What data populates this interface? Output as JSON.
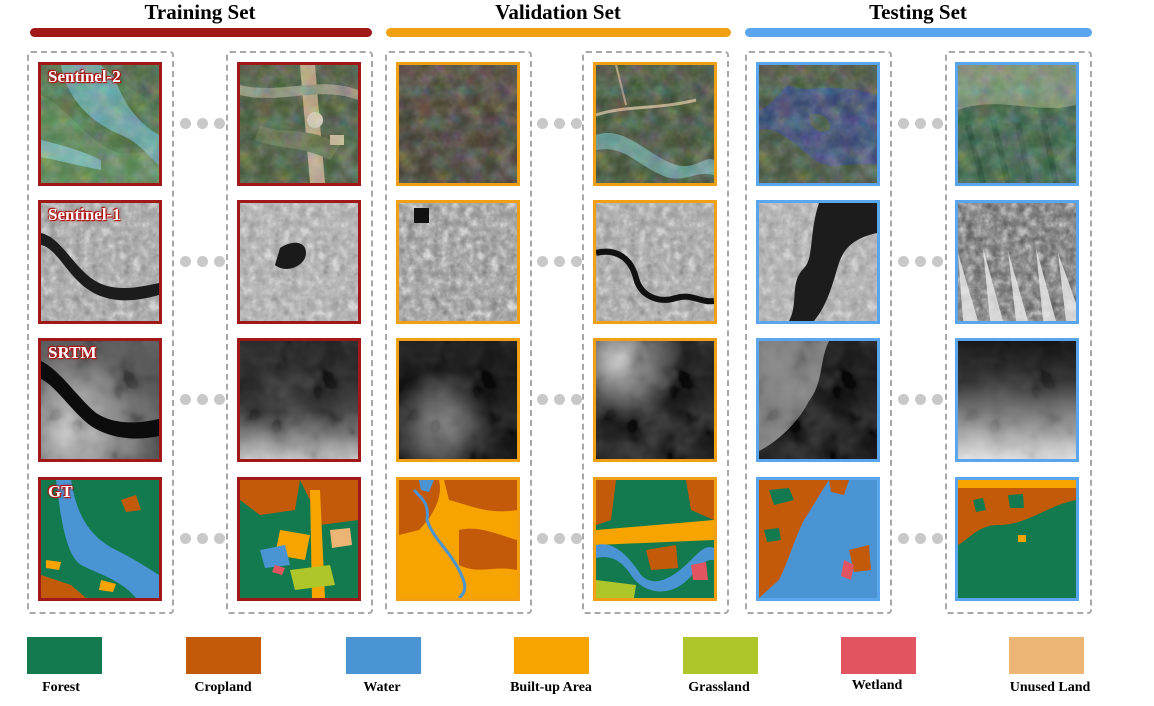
{
  "sets": {
    "training": {
      "title": "Training Set",
      "color": "#a01818"
    },
    "validation": {
      "title": "Validation Set",
      "color": "#f2a013"
    },
    "testing": {
      "title": "Testing Set",
      "color": "#5aa6ee"
    }
  },
  "row_labels": {
    "sentinel2": "Sentinel-2",
    "sentinel1": "Sentinel-1",
    "srtm": "SRTM",
    "gt": "GT"
  },
  "legend": [
    {
      "label": "Forest",
      "color": "#127a4e"
    },
    {
      "label": "Cropland",
      "color": "#c35a0a"
    },
    {
      "label": "Water",
      "color": "#4a94d4"
    },
    {
      "label": "Built-up Area",
      "color": "#f7a300"
    },
    {
      "label": "Grassland",
      "color": "#aec62a"
    },
    {
      "label": "Wetland",
      "color": "#e2545f"
    },
    {
      "label": "Unused Land",
      "color": "#ecb475"
    }
  ]
}
